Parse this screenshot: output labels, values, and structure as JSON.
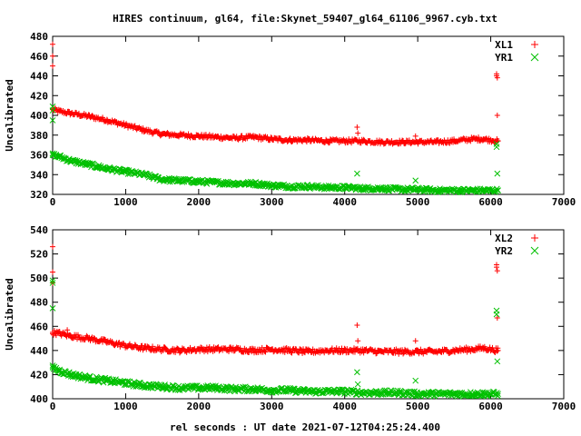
{
  "title": "HIRES continuum, gl64, file:Skynet_59407_gl64_61106_9967.cyb.txt",
  "xlabel": "rel seconds : UT date 2021-07-12T04:25:24.400",
  "colors": {
    "red": "#ff0000",
    "green": "#00c000"
  },
  "chart_data": [
    {
      "type": "scatter",
      "title": "HIRES continuum, gl64, file:Skynet_59407_gl64_61106_9967.cyb.txt",
      "xlabel": "",
      "ylabel": "Uncalibrated",
      "xlim": [
        0,
        7000
      ],
      "ylim": [
        320,
        480
      ],
      "xticks": [
        "0",
        "1000",
        "2000",
        "3000",
        "4000",
        "5000",
        "6000",
        "7000"
      ],
      "yticks": [
        "320",
        "340",
        "360",
        "380",
        "400",
        "420",
        "440",
        "460",
        "480"
      ],
      "legend": "top-right",
      "series": [
        {
          "name": "XL1",
          "marker": "plus",
          "color": "#ff0000",
          "x": [
            0,
            100,
            250,
            500,
            750,
            1000,
            1250,
            1500,
            1750,
            2000,
            2250,
            2500,
            2750,
            3000,
            3250,
            3500,
            3750,
            4000,
            4250,
            4500,
            4750,
            5000,
            5250,
            5500,
            5750,
            5900,
            6100
          ],
          "y": [
            406,
            404,
            402,
            399,
            395,
            390,
            385,
            381,
            380,
            379,
            378,
            377,
            378,
            376,
            375,
            375,
            374,
            374,
            374,
            373,
            373,
            373,
            373,
            374,
            376,
            376,
            374
          ],
          "outliers_x": [
            0,
            0,
            0,
            4170,
            4180,
            4970,
            6080,
            6080,
            6090,
            6090
          ],
          "outliers_y": [
            472,
            460,
            450,
            388,
            382,
            379,
            442,
            440,
            438,
            400
          ]
        },
        {
          "name": "YR1",
          "marker": "cross",
          "color": "#00c000",
          "x": [
            0,
            100,
            250,
            500,
            750,
            1000,
            1250,
            1500,
            1750,
            2000,
            2250,
            2500,
            2750,
            3000,
            3250,
            3500,
            3750,
            4000,
            4250,
            4500,
            4750,
            5000,
            5250,
            5500,
            5750,
            5900,
            6100
          ],
          "y": [
            360,
            358,
            354,
            350,
            346,
            343,
            340,
            335,
            334,
            333,
            332,
            331,
            331,
            329,
            328,
            328,
            327,
            327,
            326,
            326,
            325,
            325,
            324,
            324,
            324,
            324,
            324
          ],
          "outliers_x": [
            0,
            0,
            0,
            4170,
            4970,
            6080,
            6080,
            6090
          ],
          "outliers_y": [
            409,
            405,
            395,
            341,
            334,
            371,
            368,
            341
          ]
        }
      ]
    },
    {
      "type": "scatter",
      "title": "",
      "xlabel": "rel seconds : UT date 2021-07-12T04:25:24.400",
      "ylabel": "Uncalibrated",
      "xlim": [
        0,
        7000
      ],
      "ylim": [
        400,
        540
      ],
      "xticks": [
        "0",
        "1000",
        "2000",
        "3000",
        "4000",
        "5000",
        "6000",
        "7000"
      ],
      "yticks": [
        "400",
        "420",
        "440",
        "460",
        "480",
        "500",
        "520",
        "540"
      ],
      "legend": "top-right",
      "series": [
        {
          "name": "XL2",
          "marker": "plus",
          "color": "#ff0000",
          "x": [
            0,
            100,
            250,
            500,
            750,
            1000,
            1250,
            1500,
            1750,
            2000,
            2250,
            2500,
            2750,
            3000,
            3250,
            3500,
            3750,
            4000,
            4250,
            4500,
            4750,
            5000,
            5250,
            5500,
            5750,
            5900,
            6100
          ],
          "y": [
            455,
            454,
            452,
            450,
            447,
            444,
            442,
            441,
            440,
            441,
            441,
            441,
            440,
            441,
            440,
            439,
            440,
            440,
            440,
            439,
            439,
            439,
            439,
            440,
            441,
            442,
            440
          ],
          "outliers_x": [
            0,
            0,
            0,
            200,
            4170,
            4180,
            4970,
            6080,
            6080,
            6090,
            6090
          ],
          "outliers_y": [
            526,
            505,
            496,
            457,
            461,
            448,
            448,
            511,
            509,
            506,
            467
          ]
        },
        {
          "name": "YR2",
          "marker": "cross",
          "color": "#00c000",
          "x": [
            0,
            100,
            250,
            500,
            750,
            1000,
            1250,
            1500,
            1750,
            2000,
            2250,
            2500,
            2750,
            3000,
            3250,
            3500,
            3750,
            4000,
            4250,
            4500,
            4750,
            5000,
            5250,
            5500,
            5750,
            5900,
            6100
          ],
          "y": [
            426,
            423,
            420,
            417,
            415,
            413,
            411,
            410,
            409,
            409,
            409,
            408,
            408,
            407,
            407,
            406,
            406,
            406,
            405,
            405,
            405,
            404,
            404,
            404,
            404,
            404,
            404
          ],
          "outliers_x": [
            0,
            0,
            0,
            4170,
            4180,
            4970,
            6080,
            6080,
            6090
          ],
          "outliers_y": [
            498,
            496,
            475,
            422,
            412,
            415,
            473,
            470,
            431
          ]
        }
      ]
    }
  ]
}
